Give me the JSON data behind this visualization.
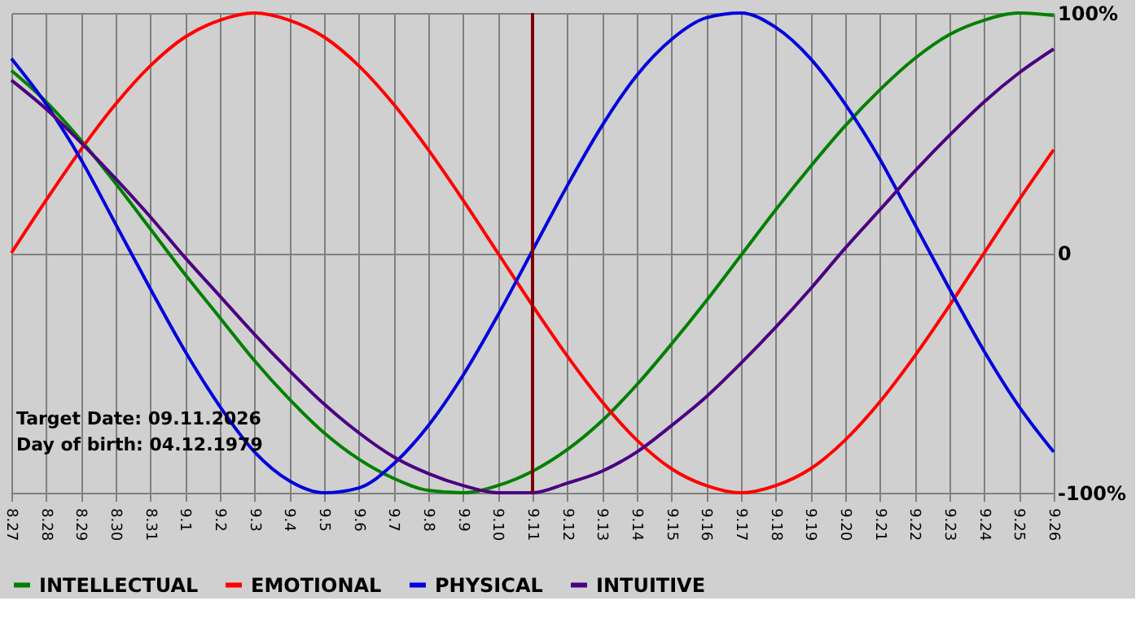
{
  "chart_data": {
    "type": "line",
    "categories": [
      "8.27",
      "8.28",
      "8.29",
      "8.30",
      "8.31",
      "9.1",
      "9.2",
      "9.3",
      "9.4",
      "9.5",
      "9.6",
      "9.7",
      "9.8",
      "9.9",
      "9.10",
      "9.11",
      "9.12",
      "9.13",
      "9.14",
      "9.15",
      "9.16",
      "9.17",
      "9.18",
      "9.19",
      "9.20",
      "9.21",
      "9.22",
      "9.23",
      "9.24",
      "9.25",
      "9.26"
    ],
    "series": [
      {
        "name": "INTELLECTUAL",
        "color": "#008000",
        "values": [
          76,
          63,
          47,
          29,
          10,
          -9,
          -27,
          -45,
          -61,
          -75,
          -86,
          -94,
          -99,
          -100,
          -97,
          -91,
          -82,
          -70,
          -55,
          -38,
          -20,
          -1,
          18,
          36,
          53,
          68,
          81,
          91,
          97,
          100,
          99
        ]
      },
      {
        "name": "EMOTIONAL",
        "color": "#ff0000",
        "values": [
          0,
          22,
          43,
          62,
          78,
          90,
          97,
          100,
          97,
          90,
          78,
          62,
          43,
          22,
          0,
          -22,
          -43,
          -62,
          -78,
          -90,
          -97,
          -100,
          -97,
          -90,
          -78,
          -62,
          -43,
          -22,
          0,
          22,
          43
        ]
      },
      {
        "name": "PHYSICAL",
        "color": "#0000dd",
        "values": [
          81,
          62,
          39,
          12,
          -15,
          -41,
          -64,
          -83,
          -95,
          -100,
          -98,
          -88,
          -72,
          -51,
          -26,
          1,
          28,
          53,
          74,
          89,
          98,
          100,
          94,
          81,
          62,
          39,
          12,
          -15,
          -41,
          -64,
          -83
        ]
      },
      {
        "name": "INTUITIVE",
        "color": "#4b0082",
        "values": [
          72,
          60,
          46,
          31,
          15,
          -2,
          -18,
          -34,
          -49,
          -63,
          -75,
          -85,
          -92,
          -97,
          -100,
          -100,
          -96,
          -91,
          -83,
          -72,
          -60,
          -46,
          -31,
          -15,
          2,
          18,
          34,
          49,
          63,
          75,
          85
        ]
      }
    ],
    "ylim": [
      -100,
      100
    ],
    "yticks": [
      {
        "value": -100,
        "label": "-100%"
      },
      0,
      {
        "value": 100,
        "label": "100%"
      }
    ],
    "grid": true,
    "legend": "bottom left",
    "marker": "none",
    "line_style": "solid",
    "ref_lines": [
      {
        "axis": "x",
        "value": "9.11",
        "color": "#800000"
      }
    ],
    "annotations": [
      "Target Date: 09.11.2026",
      "Day of birth: 04.12.1979"
    ]
  }
}
